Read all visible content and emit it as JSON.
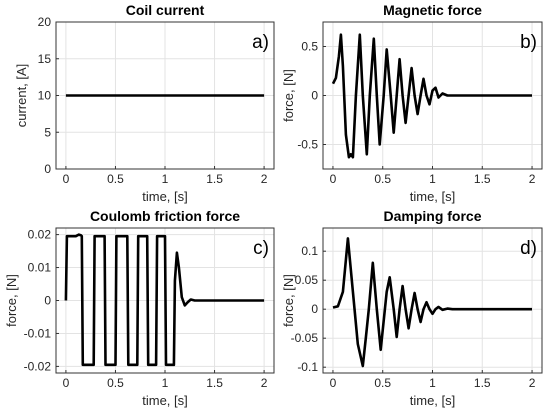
{
  "chart_data": [
    {
      "type": "line",
      "title": "Coil current",
      "xlabel": "time, [s]",
      "ylabel": "current, [A]",
      "panel_label": "a)",
      "xlim": [
        -0.1,
        2.1
      ],
      "ylim": [
        0,
        20
      ],
      "xticks": [
        0,
        0.5,
        1,
        1.5,
        2
      ],
      "xtick_labels": [
        "0",
        "0.5",
        "1",
        "1.5",
        "2"
      ],
      "yticks": [
        0,
        5,
        10,
        15,
        20
      ],
      "ytick_labels": [
        "0",
        "5",
        "10",
        "15",
        "20"
      ],
      "grid": true,
      "series": [
        {
          "x": [
            0,
            2
          ],
          "y": [
            10,
            10
          ]
        }
      ]
    },
    {
      "type": "line",
      "title": "Magnetic force",
      "xlabel": "time, [s]",
      "ylabel": "force, [N]",
      "panel_label": "b)",
      "xlim": [
        -0.1,
        2.1
      ],
      "ylim": [
        -0.75,
        0.75
      ],
      "xticks": [
        0,
        0.5,
        1,
        1.5,
        2
      ],
      "xtick_labels": [
        "0",
        "0.5",
        "1",
        "1.5",
        "2"
      ],
      "yticks": [
        -0.5,
        0,
        0.5
      ],
      "ytick_labels": [
        "-0.5",
        "0",
        "0.5"
      ],
      "grid": true,
      "series": [
        {
          "x": [
            0,
            0.03,
            0.06,
            0.08,
            0.1,
            0.13,
            0.16,
            0.18,
            0.2,
            0.23,
            0.27,
            0.3,
            0.34,
            0.37,
            0.41,
            0.44,
            0.47,
            0.51,
            0.54,
            0.58,
            0.61,
            0.64,
            0.67,
            0.7,
            0.73,
            0.76,
            0.79,
            0.82,
            0.85,
            0.88,
            0.91,
            0.94,
            0.97,
            1.0,
            1.03,
            1.06,
            1.1,
            1.15,
            1.2,
            2.0
          ],
          "y": [
            0.12,
            0.18,
            0.4,
            0.62,
            0.3,
            -0.4,
            -0.63,
            -0.6,
            -0.63,
            0.0,
            0.62,
            0.0,
            -0.6,
            0.0,
            0.58,
            0.0,
            -0.5,
            0.0,
            0.47,
            0.0,
            -0.38,
            0.0,
            0.37,
            0.0,
            -0.28,
            0.0,
            0.28,
            0.0,
            -0.19,
            0.0,
            0.17,
            0.0,
            -0.09,
            0.05,
            0.08,
            -0.02,
            0.02,
            0.0,
            0.0,
            0.0
          ]
        }
      ]
    },
    {
      "type": "line",
      "title": "Coulomb friction force",
      "xlabel": "time, [s]",
      "ylabel": "force, [N]",
      "panel_label": "c)",
      "xlim": [
        -0.1,
        2.1
      ],
      "ylim": [
        -0.022,
        0.022
      ],
      "xticks": [
        0,
        0.5,
        1,
        1.5,
        2
      ],
      "xtick_labels": [
        "0",
        "0.5",
        "1",
        "1.5",
        "2"
      ],
      "yticks": [
        -0.02,
        -0.01,
        0,
        0.01,
        0.02
      ],
      "ytick_labels": [
        "-0.02",
        "-0.01",
        "0",
        "0.01",
        "0.02"
      ],
      "grid": true,
      "series": [
        {
          "x": [
            0,
            0.01,
            0.1,
            0.13,
            0.15,
            0.16,
            0.17,
            0.28,
            0.29,
            0.39,
            0.4,
            0.5,
            0.51,
            0.62,
            0.63,
            0.72,
            0.73,
            0.82,
            0.83,
            0.91,
            0.92,
            1.0,
            1.01,
            1.09,
            1.1,
            1.12,
            1.14,
            1.17,
            1.2,
            1.23,
            1.26,
            1.3,
            1.35,
            2.0
          ],
          "y": [
            0,
            0.0195,
            0.0195,
            0.02,
            0.0198,
            0.0195,
            -0.0195,
            -0.0195,
            0.0195,
            0.0195,
            -0.0195,
            -0.0195,
            0.0195,
            0.0195,
            -0.0195,
            -0.0195,
            0.0195,
            0.0195,
            -0.0195,
            -0.0195,
            0.0195,
            0.0195,
            -0.0195,
            -0.0195,
            0.006,
            0.0145,
            0.01,
            0.001,
            -0.0015,
            -0.0005,
            0.0003,
            0,
            0,
            0
          ]
        }
      ]
    },
    {
      "type": "line",
      "title": "Damping force",
      "xlabel": "time, [s]",
      "ylabel": "force, [N]",
      "panel_label": "d)",
      "xlim": [
        -0.1,
        2.1
      ],
      "ylim": [
        -0.11,
        0.14
      ],
      "xticks": [
        0,
        0.5,
        1,
        1.5,
        2
      ],
      "xtick_labels": [
        "0",
        "0.5",
        "1",
        "1.5",
        "2"
      ],
      "yticks": [
        -0.1,
        -0.05,
        0,
        0.05,
        0.1
      ],
      "ytick_labels": [
        "-0.1",
        "-0.05",
        "0",
        "0.05",
        "0.1"
      ],
      "grid": true,
      "series": [
        {
          "x": [
            0,
            0.05,
            0.1,
            0.15,
            0.2,
            0.25,
            0.3,
            0.33,
            0.36,
            0.4,
            0.44,
            0.48,
            0.51,
            0.54,
            0.57,
            0.61,
            0.64,
            0.67,
            0.7,
            0.73,
            0.76,
            0.79,
            0.82,
            0.85,
            0.88,
            0.91,
            0.94,
            0.97,
            1.0,
            1.03,
            1.06,
            1.1,
            1.15,
            1.2,
            1.3,
            2.0
          ],
          "y": [
            0.003,
            0.005,
            0.03,
            0.122,
            0.03,
            -0.06,
            -0.098,
            -0.05,
            0.0,
            0.08,
            0.0,
            -0.07,
            -0.02,
            0.03,
            0.055,
            0.0,
            -0.048,
            0.0,
            0.04,
            0.0,
            -0.033,
            0.0,
            0.028,
            0.0,
            -0.022,
            0.0,
            0.012,
            0.0,
            -0.008,
            0.0,
            0.004,
            -0.001,
            0.001,
            0.0,
            0.0,
            0.0
          ]
        }
      ]
    }
  ]
}
